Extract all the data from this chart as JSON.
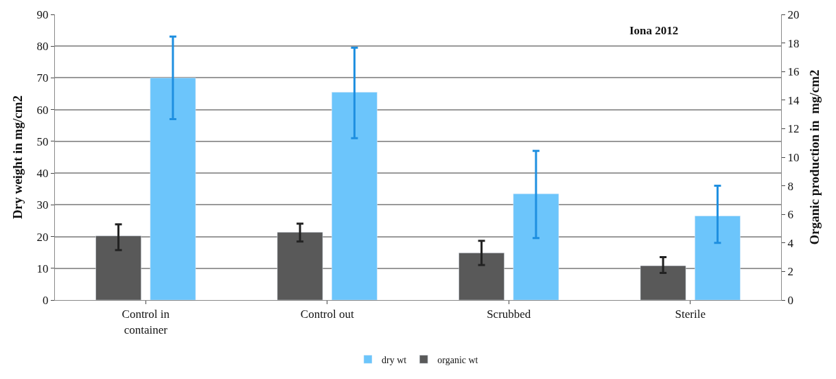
{
  "chart_data": {
    "type": "bar",
    "categories": [
      "Control in\ncontainer",
      "Control out",
      "Scrubbed",
      "Sterile"
    ],
    "ylabel": "Dry weight in mg/cm2",
    "y2label": "Organic production in  mg/cm2",
    "ylim": [
      0,
      90
    ],
    "yticks": [
      0,
      10,
      20,
      30,
      40,
      50,
      60,
      70,
      80,
      90
    ],
    "y2lim": [
      0,
      20
    ],
    "y2ticks": [
      0,
      2,
      4,
      6,
      8,
      10,
      12,
      14,
      16,
      18,
      20
    ],
    "grid": "y",
    "legend": "bottom",
    "annotations": [
      "Iona 2012"
    ],
    "series": [
      {
        "name": "organic wt",
        "color": "#595959",
        "axis": "y2",
        "values": [
          4.5,
          4.75,
          3.3,
          2.4
        ],
        "errors": [
          [
            3.5,
            5.3
          ],
          [
            4.1,
            5.35
          ],
          [
            2.45,
            4.15
          ],
          [
            1.9,
            3.0
          ]
        ]
      },
      {
        "name": "dry wt",
        "color": "#6cc5fb",
        "values": [
          70,
          65.5,
          33.5,
          26.5
        ],
        "errors": [
          [
            57,
            83
          ],
          [
            51,
            79.5
          ],
          [
            19.5,
            47
          ],
          [
            18,
            36
          ]
        ]
      }
    ]
  }
}
